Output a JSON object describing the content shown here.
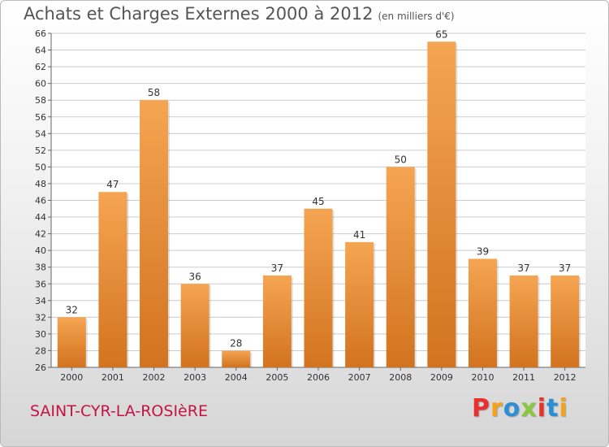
{
  "header": {
    "title": "Achats et Charges Externes 2000 à 2012",
    "unit": "(en milliers d'€)"
  },
  "footer": {
    "commune": "SAINT-CYR-LA-ROSIèRE",
    "brand": "Proxiti",
    "brand_colors": [
      "#e8312f",
      "#f5a21b",
      "#2b8fd6",
      "#8dc63f",
      "#e8312f",
      "#2b8fd6",
      "#f5a21b"
    ]
  },
  "colors": {
    "bar_top": "#f5a552",
    "bar_bottom": "#d2731f",
    "grid": "#cccccc",
    "plot_bg": "#ffffff"
  },
  "chart_data": {
    "type": "bar",
    "title": "Achats et Charges Externes 2000 à 2012",
    "subtitle": "(en milliers d'€)",
    "categories": [
      "2000",
      "2001",
      "2002",
      "2003",
      "2004",
      "2005",
      "2006",
      "2007",
      "2008",
      "2009",
      "2010",
      "2011",
      "2012"
    ],
    "values": [
      32,
      47,
      58,
      36,
      28,
      37,
      45,
      41,
      50,
      65,
      39,
      37,
      37
    ],
    "ylim": [
      26,
      66
    ],
    "ytick_step": 2,
    "grid": true,
    "xlabel": "",
    "ylabel": ""
  }
}
